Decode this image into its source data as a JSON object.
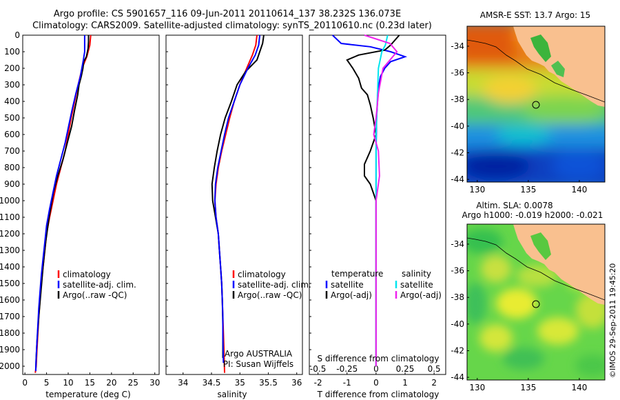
{
  "header": {
    "line1": "Argo profile: CS 5901657_116 09-Jun-2011 20110614_137 38.232S 136.073E",
    "line2": "Climatology: CARS2009. Satellite-adjusted climatology: synTS_20110610.nc (0.23d later)"
  },
  "watermark": "©IMOS 29-Sep-2011 19:45:20",
  "colors": {
    "red": "#ff0000",
    "blue": "#0000ff",
    "black": "#000000",
    "cyan": "#00e5ee",
    "magenta": "#ee22ee",
    "land": "#f9c08f"
  },
  "chart_data": [
    {
      "type": "line",
      "panel": "temperature",
      "xlabel": "temperature (deg C)",
      "ylabel": "",
      "xlim": [
        -0.5,
        31
      ],
      "ylim": [
        2050,
        0
      ],
      "xticks": [
        "0",
        "5",
        "10",
        "15",
        "20",
        "25",
        "30"
      ],
      "yticks": [
        "0",
        "100",
        "200",
        "300",
        "400",
        "500",
        "600",
        "700",
        "800",
        "900",
        "1000",
        "1100",
        "1200",
        "1300",
        "1400",
        "1500",
        "1600",
        "1700",
        "1800",
        "1900",
        "2000"
      ],
      "legend": [
        "climatology",
        "satellite-adj. clim.",
        "Argo(..raw -QC)"
      ],
      "series": [
        {
          "name": "climatology",
          "color": "red",
          "x": [
            15.2,
            15.0,
            14.3,
            13.2,
            12.3,
            11.5,
            10.7,
            10.0,
            9.3,
            8.3,
            7.3,
            6.5,
            5.7,
            5.0,
            4.6,
            4.2,
            3.8,
            3.5,
            3.2,
            3.0,
            2.8,
            2.6,
            2.5,
            2.4
          ],
          "y": [
            0,
            60,
            130,
            200,
            300,
            400,
            500,
            600,
            700,
            800,
            900,
            1000,
            1100,
            1200,
            1300,
            1400,
            1500,
            1600,
            1700,
            1800,
            1900,
            2000,
            2020,
            2040
          ]
        },
        {
          "name": "satellite-adj. clim.",
          "color": "blue",
          "x": [
            13.8,
            13.8,
            13.8,
            13.5,
            12.8,
            11.8,
            10.9,
            10.1,
            9.3,
            8.3,
            7.3,
            6.5,
            5.7,
            5.0,
            4.6,
            4.2,
            3.8,
            3.5,
            3.2,
            3.0,
            2.8,
            2.6,
            2.5
          ],
          "y": [
            0,
            50,
            100,
            150,
            250,
            350,
            450,
            550,
            650,
            750,
            850,
            950,
            1050,
            1150,
            1250,
            1350,
            1450,
            1550,
            1650,
            1750,
            1850,
            1950,
            2030
          ]
        },
        {
          "name": "Argo(..raw -QC)",
          "color": "black",
          "x": [
            14.7,
            14.7,
            14.6,
            14.2,
            13.6,
            13.4,
            13.0,
            12.5,
            12.2,
            11.5,
            10.8,
            9.8,
            8.8,
            7.6,
            6.6,
            5.6,
            4.8,
            4.2,
            3.7,
            3.2,
            2.8,
            2.6,
            2.5
          ],
          "y": [
            0,
            40,
            80,
            130,
            160,
            200,
            250,
            300,
            360,
            450,
            550,
            650,
            750,
            850,
            950,
            1100,
            1250,
            1400,
            1550,
            1700,
            1850,
            1950,
            2020
          ]
        }
      ]
    },
    {
      "type": "line",
      "panel": "salinity",
      "xlabel": "salinity",
      "xlim": [
        33.7,
        36.1
      ],
      "ylim": [
        2050,
        0
      ],
      "xticks": [
        "34",
        "34.5",
        "35",
        "35.5",
        "36"
      ],
      "legend": [
        "climatology",
        "satellite-adj. clim.",
        "Argo(..raw -QC)"
      ],
      "annotation": [
        "Argo AUSTRALIA",
        "PI: Susan Wijffels"
      ],
      "series": [
        {
          "name": "climatology",
          "color": "red",
          "x": [
            35.3,
            35.28,
            35.22,
            35.12,
            35.0,
            34.9,
            34.82,
            34.75,
            34.68,
            34.62,
            34.58,
            34.56,
            34.58,
            34.62,
            34.64,
            34.66,
            34.68,
            34.69,
            34.7,
            34.71,
            34.72,
            34.73
          ],
          "y": [
            0,
            60,
            120,
            200,
            300,
            400,
            500,
            600,
            700,
            800,
            900,
            1000,
            1100,
            1200,
            1300,
            1400,
            1500,
            1600,
            1700,
            1800,
            1900,
            2040
          ]
        },
        {
          "name": "satellite-adj. clim.",
          "color": "blue",
          "x": [
            35.35,
            35.33,
            35.27,
            35.14,
            35.0,
            34.9,
            34.8,
            34.73,
            34.67,
            34.61,
            34.57,
            34.56,
            34.58,
            34.62,
            34.64,
            34.66,
            34.68,
            34.69,
            34.7,
            34.7,
            34.71
          ],
          "y": [
            0,
            60,
            120,
            200,
            300,
            400,
            500,
            600,
            700,
            800,
            900,
            1000,
            1100,
            1200,
            1300,
            1400,
            1500,
            1600,
            1700,
            1800,
            1980
          ]
        },
        {
          "name": "Argo(..raw -QC)",
          "color": "black",
          "x": [
            35.42,
            35.4,
            35.3,
            35.1,
            34.95,
            34.85,
            34.74,
            34.66,
            34.6,
            34.55,
            34.51,
            34.52,
            34.57,
            34.62,
            34.64,
            34.66,
            34.68,
            34.69,
            34.7,
            34.7
          ],
          "y": [
            0,
            50,
            150,
            220,
            300,
            400,
            500,
            600,
            700,
            800,
            900,
            1000,
            1100,
            1200,
            1300,
            1400,
            1500,
            1600,
            1750,
            1950
          ]
        }
      ]
    },
    {
      "type": "line",
      "panel": "differences",
      "xlabel": "T difference from climatology",
      "xlabel_top": "S difference from climatology",
      "xlim_T": [
        -2.3,
        2.4
      ],
      "xticks_T": [
        "-2",
        "-1",
        "0",
        "1",
        "2"
      ],
      "xticks_S": [
        "-0.5",
        "-0.25",
        "0",
        "0.25",
        "0.5"
      ],
      "ylim": [
        2050,
        0
      ],
      "legend_left_title": "temperature",
      "legend_left": [
        "satellite",
        "Argo(-adj)"
      ],
      "legend_right_title": "salinity",
      "legend_right": [
        "satellite",
        "Argo(-adj)"
      ],
      "series": [
        {
          "name": "satellite",
          "quantity": "T",
          "color": "blue",
          "x": [
            -1.5,
            -1.2,
            -0.2,
            0.5,
            1.0,
            0.5,
            0.3,
            0.15,
            0.1,
            0.05,
            0.02,
            0.0,
            0.0,
            0.0,
            0.0,
            0.0,
            0.0
          ],
          "y": [
            0,
            50,
            70,
            100,
            130,
            160,
            200,
            250,
            300,
            400,
            500,
            700,
            900,
            1100,
            1400,
            1700,
            2000
          ]
        },
        {
          "name": "Argo(-adj)",
          "quantity": "T",
          "color": "black",
          "x": [
            0.8,
            0.5,
            0.3,
            -0.6,
            -1.0,
            -0.8,
            -0.6,
            -0.5,
            -0.3,
            -0.2,
            -0.1,
            0.0,
            -0.2,
            -0.4,
            -0.4,
            -0.2,
            -0.1,
            0.0,
            0.0,
            0.0,
            0.0
          ],
          "y": [
            0,
            60,
            90,
            120,
            150,
            200,
            260,
            320,
            360,
            420,
            500,
            600,
            700,
            780,
            850,
            900,
            950,
            1000,
            1200,
            1600,
            2000
          ]
        },
        {
          "name": "satellite",
          "quantity": "S",
          "color": "cyan",
          "x": [
            0.1,
            0.08,
            0.05,
            0.02,
            0.01,
            0.0,
            0.0,
            0.0,
            0.0,
            0.0,
            0.0
          ],
          "y": [
            0,
            60,
            100,
            200,
            400,
            600,
            800,
            1000,
            1300,
            1700,
            2000
          ]
        },
        {
          "name": "Argo(-adj)",
          "quantity": "S",
          "color": "magenta",
          "x": [
            -0.1,
            0.12,
            0.18,
            0.06,
            0.02,
            0.0,
            -0.02,
            0.02,
            0.03,
            0.0,
            0.0,
            0.0
          ],
          "y": [
            0,
            50,
            100,
            200,
            350,
            500,
            600,
            700,
            850,
            1000,
            1400,
            2000
          ]
        }
      ]
    },
    {
      "type": "heatmap",
      "panel": "map_sst",
      "title": "AMSR-E SST: 13.7 Argo: 15",
      "xticks": [
        "130",
        "135",
        "140"
      ],
      "yticks": [
        "-34",
        "-36",
        "-38",
        "-40",
        "-42",
        "-44"
      ],
      "xlim": [
        129,
        142.5
      ],
      "ylim": [
        -44.2,
        -32.5
      ],
      "marker": {
        "lon": 136.073,
        "lat": -38.232
      }
    },
    {
      "type": "heatmap",
      "panel": "map_sla",
      "title_line1": "Altim. SLA: 0.0078",
      "title_line2": "Argo h1000: -0.019 h2000: -0.021",
      "xticks": [
        "130",
        "135",
        "140"
      ],
      "yticks": [
        "-34",
        "-36",
        "-38",
        "-40",
        "-42",
        "-44"
      ],
      "xlim": [
        129,
        142.5
      ],
      "ylim": [
        -44.2,
        -32.5
      ],
      "marker": {
        "lon": 136.073,
        "lat": -38.232
      }
    }
  ]
}
